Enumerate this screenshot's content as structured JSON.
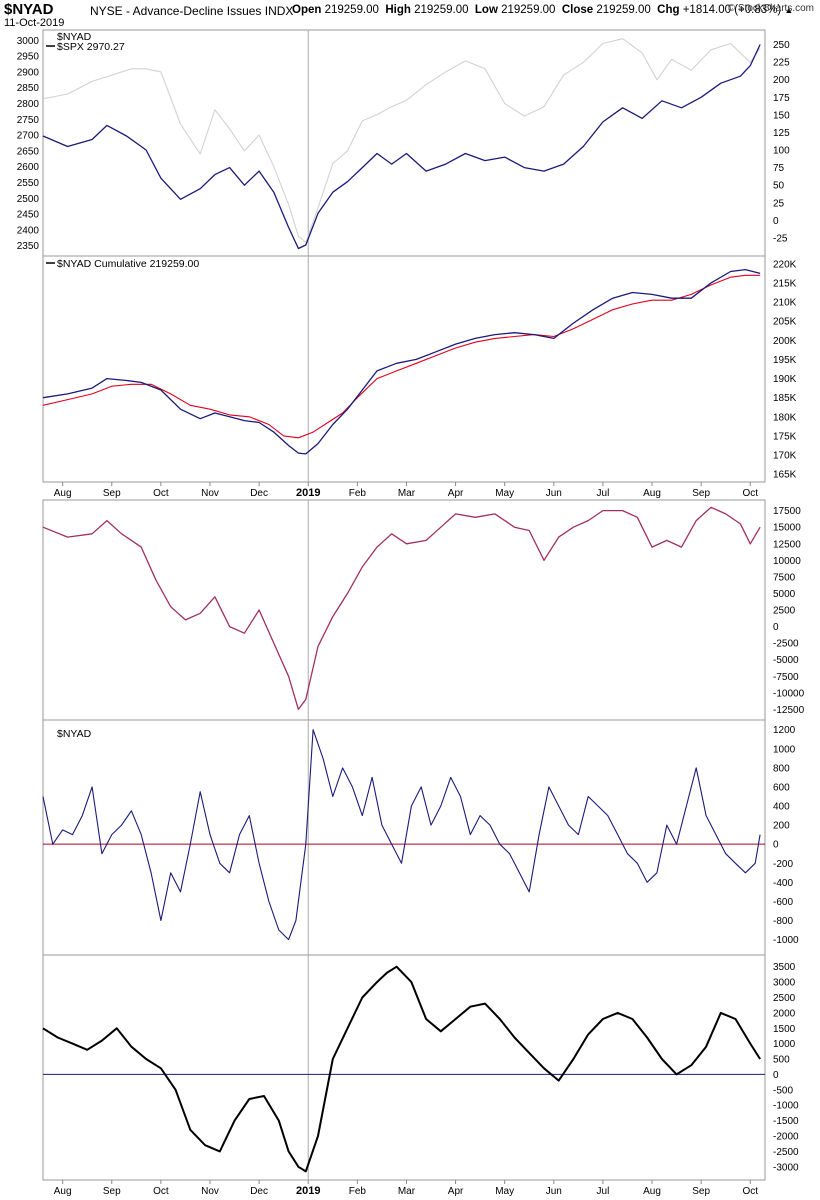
{
  "header": {
    "symbol": "$NYAD",
    "description": "NYSE - Advance-Decline Issues INDX",
    "date": "11-Oct-2019",
    "open_label": "Open",
    "open": "219259.00",
    "high_label": "High",
    "high": "219259.00",
    "low_label": "Low",
    "low": "219259.00",
    "close_label": "Close",
    "close": "219259.00",
    "chg_label": "Chg",
    "chg": "+1814.00 (+0.83%)",
    "credit": "© StockCharts.com"
  },
  "x_axis": {
    "months": [
      "Aug",
      "Sep",
      "Oct",
      "Nov",
      "Dec",
      "2019",
      "Feb",
      "Mar",
      "Apr",
      "May",
      "Jun",
      "Jul",
      "Aug",
      "Sep",
      "Oct"
    ],
    "month_index": [
      0.4,
      1.4,
      2.4,
      3.4,
      4.4,
      5.4,
      6.4,
      7.4,
      8.4,
      9.4,
      10.4,
      11.4,
      12.4,
      13.4,
      14.4
    ]
  },
  "colors": {
    "navy": "#1a1a7a",
    "gray": "#d2d2d2",
    "red": "#e00020",
    "maroon": "#a03060",
    "black": "#000000",
    "zero_red": "#b00020",
    "zero_navy": "#1a1a7a"
  },
  "chart_data": [
    {
      "type": "line",
      "panel": "price",
      "legend": [
        "$NYAD",
        "$SPX 2970.27"
      ],
      "left_ticks": [
        3000,
        2950,
        2900,
        2850,
        2800,
        2750,
        2700,
        2650,
        2600,
        2550,
        2500,
        2450,
        2400,
        2350
      ],
      "right_ticks": [
        250,
        225,
        200,
        175,
        150,
        125,
        100,
        75,
        50,
        25,
        0,
        -25
      ],
      "ylim_left": [
        2330,
        3020
      ],
      "ylim_right": [
        -45,
        265
      ],
      "series": [
        {
          "name": "$NYAD",
          "axis": "right",
          "color": "navy",
          "x": [
            0,
            0.5,
            1.0,
            1.3,
            1.7,
            2.1,
            2.4,
            2.8,
            3.2,
            3.5,
            3.8,
            4.1,
            4.4,
            4.7,
            5.0,
            5.2,
            5.35,
            5.6,
            5.9,
            6.2,
            6.5,
            6.8,
            7.1,
            7.4,
            7.8,
            8.2,
            8.6,
            9.0,
            9.4,
            9.8,
            10.2,
            10.6,
            11.0,
            11.4,
            11.8,
            12.2,
            12.6,
            13.0,
            13.4,
            13.8,
            14.2,
            14.4,
            14.6
          ],
          "y": [
            120,
            105,
            115,
            135,
            120,
            100,
            60,
            30,
            45,
            65,
            75,
            50,
            70,
            40,
            -10,
            -40,
            -35,
            10,
            40,
            55,
            75,
            95,
            80,
            95,
            70,
            80,
            95,
            85,
            90,
            75,
            70,
            80,
            105,
            140,
            160,
            145,
            170,
            160,
            175,
            195,
            205,
            220,
            250
          ]
        },
        {
          "name": "$SPX 2970.27",
          "axis": "left",
          "color": "gray",
          "x": [
            0,
            0.5,
            1.0,
            1.4,
            1.8,
            2.1,
            2.4,
            2.8,
            3.2,
            3.5,
            3.8,
            4.1,
            4.4,
            4.7,
            5.0,
            5.2,
            5.35,
            5.6,
            5.9,
            6.2,
            6.5,
            6.8,
            7.1,
            7.4,
            7.8,
            8.2,
            8.6,
            9.0,
            9.4,
            9.8,
            10.2,
            10.6,
            11.0,
            11.4,
            11.8,
            12.2,
            12.5,
            12.8,
            13.2,
            13.6,
            14.0,
            14.4,
            14.6
          ],
          "y": [
            2815,
            2830,
            2870,
            2890,
            2910,
            2910,
            2900,
            2735,
            2640,
            2780,
            2720,
            2650,
            2700,
            2600,
            2480,
            2380,
            2360,
            2470,
            2610,
            2650,
            2745,
            2765,
            2790,
            2810,
            2860,
            2900,
            2935,
            2910,
            2800,
            2760,
            2790,
            2890,
            2930,
            2990,
            3005,
            2960,
            2875,
            2940,
            2905,
            2970,
            2990,
            2930,
            2975
          ]
        }
      ]
    },
    {
      "type": "line",
      "panel": "cumulative",
      "legend": [
        "$NYAD Cumulative 219259.00"
      ],
      "right_ticks": [
        "220K",
        "215K",
        "210K",
        "205K",
        "200K",
        "195K",
        "190K",
        "185K",
        "180K",
        "175K",
        "170K",
        "165K"
      ],
      "right_tick_values": [
        220,
        215,
        210,
        205,
        200,
        195,
        190,
        185,
        180,
        175,
        170,
        165
      ],
      "ylim": [
        164,
        221
      ],
      "series": [
        {
          "name": "",
          "color": "navy",
          "x": [
            0,
            0.5,
            1.0,
            1.3,
            1.7,
            2.0,
            2.4,
            2.8,
            3.2,
            3.5,
            3.8,
            4.1,
            4.4,
            4.7,
            5.0,
            5.2,
            5.35,
            5.6,
            5.9,
            6.2,
            6.5,
            6.8,
            7.2,
            7.6,
            8.0,
            8.4,
            8.8,
            9.2,
            9.6,
            10.0,
            10.4,
            10.8,
            11.2,
            11.6,
            12.0,
            12.4,
            12.8,
            13.2,
            13.6,
            14.0,
            14.3,
            14.6
          ],
          "y": [
            185,
            186,
            187.5,
            190,
            189.5,
            189,
            187,
            182,
            179.5,
            181,
            180,
            179,
            178.5,
            176,
            172.5,
            170.5,
            170.3,
            173,
            178,
            182,
            187,
            192,
            194,
            195,
            197,
            199,
            200.5,
            201.5,
            202,
            201.5,
            200.5,
            204.5,
            208,
            211,
            212.5,
            212,
            211,
            211,
            215,
            218,
            218.5,
            217.5
          ]
        },
        {
          "name": "",
          "color": "red",
          "x": [
            0,
            0.5,
            1.0,
            1.4,
            1.8,
            2.2,
            2.6,
            3.0,
            3.4,
            3.8,
            4.2,
            4.6,
            4.9,
            5.2,
            5.5,
            5.8,
            6.1,
            6.4,
            6.8,
            7.2,
            7.6,
            8.0,
            8.4,
            8.8,
            9.2,
            9.6,
            10.0,
            10.4,
            10.8,
            11.2,
            11.6,
            12.0,
            12.4,
            12.8,
            13.2,
            13.6,
            14.0,
            14.3,
            14.6
          ],
          "y": [
            183,
            184.5,
            186,
            188,
            188.5,
            188.5,
            186,
            183,
            182,
            180.5,
            180,
            178,
            175,
            174.5,
            176,
            178.5,
            181,
            185,
            190,
            192,
            194,
            196,
            198,
            199.5,
            200.5,
            201,
            201.5,
            201,
            203,
            205.5,
            208,
            209.5,
            210.5,
            210.5,
            212,
            214.5,
            216.5,
            217,
            217
          ]
        }
      ]
    },
    {
      "type": "line",
      "panel": "oscillator",
      "legend": [],
      "right_ticks": [
        17500,
        15000,
        12500,
        10000,
        7500,
        5000,
        2500,
        0,
        -2500,
        -5000,
        -7500,
        -10000,
        -12500
      ],
      "ylim": [
        -13500,
        18500
      ],
      "series": [
        {
          "name": "",
          "color": "maroon",
          "x": [
            0,
            0.5,
            1.0,
            1.3,
            1.6,
            2.0,
            2.3,
            2.6,
            2.9,
            3.2,
            3.5,
            3.8,
            4.1,
            4.4,
            4.7,
            5.0,
            5.2,
            5.35,
            5.6,
            5.9,
            6.2,
            6.5,
            6.8,
            7.1,
            7.4,
            7.8,
            8.1,
            8.4,
            8.8,
            9.2,
            9.6,
            9.9,
            10.2,
            10.5,
            10.8,
            11.1,
            11.4,
            11.8,
            12.1,
            12.4,
            12.7,
            13.0,
            13.3,
            13.6,
            13.9,
            14.2,
            14.4,
            14.6
          ],
          "y": [
            15000,
            13500,
            14000,
            16000,
            14000,
            12000,
            7000,
            3000,
            1000,
            2000,
            4500,
            0,
            -1000,
            2500,
            -2500,
            -7500,
            -12500,
            -11000,
            -3000,
            1500,
            5000,
            9000,
            12000,
            14000,
            12500,
            13000,
            15000,
            17000,
            16500,
            17000,
            15000,
            14500,
            10000,
            13500,
            15000,
            16000,
            17500,
            17500,
            16500,
            12000,
            13000,
            12000,
            16000,
            18000,
            17000,
            15500,
            12500,
            15000
          ]
        }
      ]
    },
    {
      "type": "line",
      "panel": "daily",
      "legend": [
        "$NYAD"
      ],
      "right_ticks": [
        1200,
        1000,
        800,
        600,
        400,
        200,
        0,
        -200,
        -400,
        -600,
        -800,
        -1000
      ],
      "ylim": [
        -1120,
        1260
      ],
      "series": [
        {
          "name": "$NYAD",
          "color": "navy",
          "x": [
            0,
            0.2,
            0.4,
            0.6,
            0.8,
            1.0,
            1.2,
            1.4,
            1.6,
            1.8,
            2.0,
            2.2,
            2.4,
            2.6,
            2.8,
            3.0,
            3.2,
            3.4,
            3.6,
            3.8,
            4.0,
            4.2,
            4.4,
            4.6,
            4.8,
            5.0,
            5.15,
            5.35,
            5.5,
            5.7,
            5.9,
            6.1,
            6.3,
            6.5,
            6.7,
            6.9,
            7.1,
            7.3,
            7.5,
            7.7,
            7.9,
            8.1,
            8.3,
            8.5,
            8.7,
            8.9,
            9.1,
            9.3,
            9.5,
            9.7,
            9.9,
            10.1,
            10.3,
            10.5,
            10.7,
            10.9,
            11.1,
            11.3,
            11.5,
            11.7,
            11.9,
            12.1,
            12.3,
            12.5,
            12.7,
            12.9,
            13.1,
            13.3,
            13.5,
            13.7,
            13.9,
            14.1,
            14.3,
            14.5,
            14.6
          ],
          "y": [
            500,
            0,
            150,
            100,
            300,
            600,
            -100,
            100,
            200,
            350,
            100,
            -300,
            -800,
            -300,
            -500,
            0,
            550,
            100,
            -200,
            -300,
            100,
            300,
            -200,
            -600,
            -900,
            -1000,
            -800,
            0,
            1200,
            900,
            500,
            800,
            600,
            300,
            700,
            200,
            0,
            -200,
            400,
            600,
            200,
            400,
            700,
            500,
            100,
            300,
            200,
            0,
            -100,
            -300,
            -500,
            100,
            600,
            400,
            200,
            100,
            500,
            400,
            300,
            100,
            -100,
            -200,
            -400,
            -300,
            200,
            0,
            400,
            800,
            300,
            100,
            -100,
            -200,
            -300,
            -200,
            100
          ]
        }
      ]
    },
    {
      "type": "line",
      "panel": "smoothed",
      "legend": [],
      "right_ticks": [
        3500,
        3000,
        2500,
        2000,
        1500,
        1000,
        500,
        0,
        -500,
        -1000,
        -1500,
        -2000,
        -2500,
        -3000
      ],
      "ylim": [
        -3300,
        3750
      ],
      "series": [
        {
          "name": "",
          "color": "black",
          "x": [
            0,
            0.3,
            0.6,
            0.9,
            1.2,
            1.5,
            1.8,
            2.1,
            2.4,
            2.7,
            3.0,
            3.3,
            3.6,
            3.9,
            4.2,
            4.5,
            4.8,
            5.0,
            5.2,
            5.35,
            5.6,
            5.9,
            6.2,
            6.5,
            6.8,
            7.0,
            7.2,
            7.5,
            7.8,
            8.1,
            8.4,
            8.7,
            9.0,
            9.3,
            9.6,
            9.9,
            10.2,
            10.5,
            10.8,
            11.1,
            11.4,
            11.7,
            12.0,
            12.3,
            12.6,
            12.9,
            13.2,
            13.5,
            13.8,
            14.1,
            14.4,
            14.6
          ],
          "y": [
            1500,
            1200,
            1000,
            800,
            1100,
            1500,
            900,
            500,
            200,
            -500,
            -1800,
            -2300,
            -2500,
            -1500,
            -800,
            -700,
            -1500,
            -2500,
            -3000,
            -3150,
            -2000,
            500,
            1500,
            2500,
            3000,
            3300,
            3500,
            3000,
            1800,
            1400,
            1800,
            2200,
            2300,
            1800,
            1200,
            700,
            200,
            -200,
            500,
            1300,
            1800,
            2000,
            1800,
            1200,
            500,
            0,
            300,
            900,
            2000,
            1800,
            1000,
            500
          ]
        }
      ]
    }
  ]
}
